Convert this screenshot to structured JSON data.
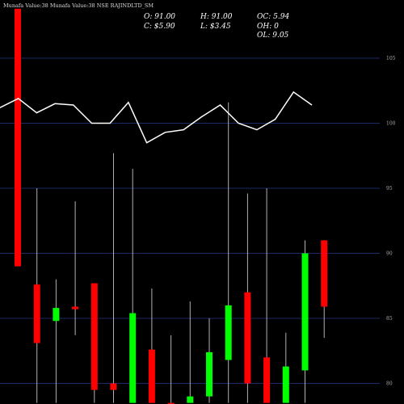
{
  "chart_data": {
    "type": "candlestick",
    "title": "Munafa Value:38  Munafa Value:38  NSE RAJINDLTD_SM",
    "stats": {
      "open": "O: 91.00",
      "high": "H: 91.00",
      "open_close": "OC: 5.94",
      "close": "C: $5.90",
      "low": "L: $3.45",
      "open_high": "OH: 0",
      "open_low": "OL: 9.05"
    },
    "y_ticks": [
      "100",
      "95",
      "90",
      "85",
      "80",
      "105"
    ],
    "y_tick_values": [
      100,
      95,
      90,
      85,
      80,
      105
    ],
    "ylim": [
      78.2,
      108.8
    ],
    "grid": true,
    "line_series": {
      "name": "",
      "color": "#ffffff",
      "values": [
        101.2,
        101.9,
        100.8,
        101.5,
        101.4,
        100.0,
        100.0,
        101.6,
        98.5,
        99.3,
        99.5,
        100.5,
        101.4,
        100.0,
        99.5,
        100.3,
        102.4,
        101.4
      ]
    },
    "candles": [
      {
        "open": 108.8,
        "close": 89.0,
        "high": 108.8,
        "low": 89.0,
        "color": "red"
      },
      {
        "open": 87.6,
        "close": 83.1,
        "high": 95.0,
        "low": 78.5,
        "color": "red"
      },
      {
        "open": 84.8,
        "close": 85.8,
        "high": 88.0,
        "low": 78.5,
        "color": "green"
      },
      {
        "open": 85.9,
        "close": 85.7,
        "high": 94.0,
        "low": 83.7,
        "color": "red"
      },
      {
        "open": 87.7,
        "close": 79.5,
        "high": 87.7,
        "low": 78.5,
        "color": "red"
      },
      {
        "open": 80.0,
        "close": 79.5,
        "high": 97.7,
        "low": 78.5,
        "color": "red"
      },
      {
        "open": 78.5,
        "close": 85.4,
        "high": 96.5,
        "low": 78.5,
        "color": "green"
      },
      {
        "open": 82.6,
        "close": 78.5,
        "high": 87.3,
        "low": 78.5,
        "color": "red"
      },
      {
        "open": 78.5,
        "close": 78.5,
        "high": 83.7,
        "low": 78.5,
        "color": "red"
      },
      {
        "open": 78.5,
        "close": 79.0,
        "high": 86.3,
        "low": 78.5,
        "color": "green"
      },
      {
        "open": 79.0,
        "close": 82.4,
        "high": 85.0,
        "low": 78.5,
        "color": "green"
      },
      {
        "open": 81.8,
        "close": 86.0,
        "high": 101.6,
        "low": 78.5,
        "color": "green"
      },
      {
        "open": 87.0,
        "close": 80.0,
        "high": 94.6,
        "low": 78.5,
        "color": "red"
      },
      {
        "open": 82.0,
        "close": 78.5,
        "high": 95.0,
        "low": 78.5,
        "color": "red"
      },
      {
        "open": 78.5,
        "close": 81.3,
        "high": 83.9,
        "low": 78.5,
        "color": "green"
      },
      {
        "open": 81.0,
        "close": 90.0,
        "high": 91.0,
        "low": 78.5,
        "color": "green"
      },
      {
        "open": 91.0,
        "close": 85.9,
        "high": 91.0,
        "low": 83.5,
        "color": "red"
      }
    ],
    "colors": {
      "up": "#00ff00",
      "down": "#ff0000",
      "grid": "#1c2a66",
      "background": "#000000",
      "wick": "#b0b0b0",
      "line": "#ffffff"
    }
  }
}
